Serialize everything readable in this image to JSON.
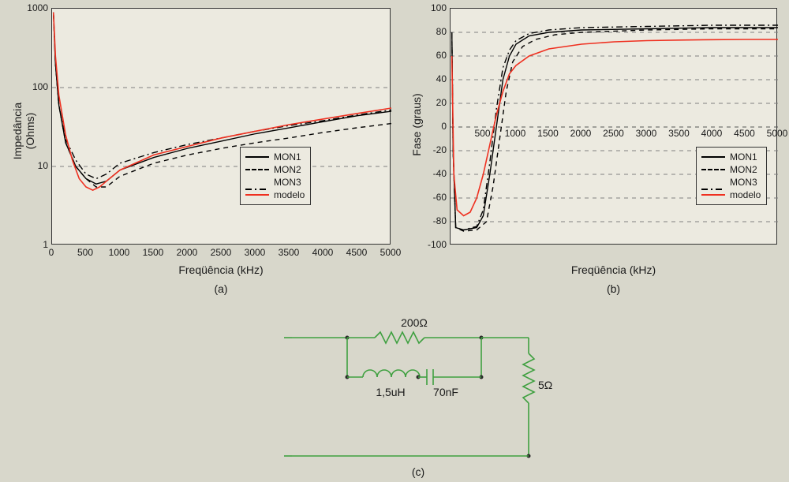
{
  "background_color": "#d8d7cb",
  "plot_bg": "#eceae0",
  "grid_color": "#808080",
  "border_color": "#333333",
  "panel_a": {
    "type": "line",
    "title_fontsize": 14,
    "xlim": [
      0,
      5000
    ],
    "ylim": [
      1,
      1000
    ],
    "yscale": "log",
    "xticks": [
      0,
      500,
      1000,
      1500,
      2000,
      2500,
      3000,
      3500,
      4000,
      4500,
      5000
    ],
    "yticks": [
      1,
      10,
      100,
      1000
    ],
    "xlabel": "Freqüência (kHz)",
    "ylabel": "Impedância (Ohms)",
    "sublabel": "(a)",
    "label_fontsize": 14,
    "tick_fontsize": 12,
    "series": [
      {
        "name": "MON1",
        "color": "#000000",
        "dash": "solid",
        "width": 1.4,
        "data": [
          [
            20,
            900
          ],
          [
            50,
            200
          ],
          [
            100,
            60
          ],
          [
            200,
            20
          ],
          [
            350,
            10
          ],
          [
            500,
            7
          ],
          [
            650,
            6
          ],
          [
            800,
            6.5
          ],
          [
            1000,
            9
          ],
          [
            1500,
            13
          ],
          [
            2000,
            17
          ],
          [
            2500,
            21
          ],
          [
            3000,
            26
          ],
          [
            3500,
            31
          ],
          [
            4000,
            37
          ],
          [
            4500,
            44
          ],
          [
            5000,
            50
          ]
        ]
      },
      {
        "name": "MON2",
        "color": "#000000",
        "dash": "dashed",
        "width": 1.4,
        "data": [
          [
            20,
            900
          ],
          [
            50,
            200
          ],
          [
            100,
            60
          ],
          [
            200,
            20
          ],
          [
            350,
            10
          ],
          [
            500,
            7
          ],
          [
            650,
            5.5
          ],
          [
            800,
            5.5
          ],
          [
            1000,
            7.5
          ],
          [
            1500,
            11
          ],
          [
            2000,
            14
          ],
          [
            2500,
            17
          ],
          [
            3000,
            20
          ],
          [
            3500,
            23
          ],
          [
            4000,
            27
          ],
          [
            4500,
            31
          ],
          [
            5000,
            35
          ]
        ]
      },
      {
        "name": "MON3",
        "color": "#000000",
        "dash": "dashdot",
        "width": 1.4,
        "data": [
          [
            20,
            900
          ],
          [
            50,
            200
          ],
          [
            100,
            60
          ],
          [
            200,
            22
          ],
          [
            350,
            12
          ],
          [
            500,
            8
          ],
          [
            650,
            7
          ],
          [
            800,
            8
          ],
          [
            1000,
            11
          ],
          [
            1500,
            15
          ],
          [
            2000,
            19
          ],
          [
            2500,
            23
          ],
          [
            3000,
            28
          ],
          [
            3500,
            33
          ],
          [
            4000,
            38
          ],
          [
            4500,
            45
          ],
          [
            5000,
            52
          ]
        ]
      },
      {
        "name": "modelo",
        "color": "#ef3020",
        "dash": "solid",
        "width": 1.6,
        "data": [
          [
            20,
            900
          ],
          [
            50,
            250
          ],
          [
            100,
            80
          ],
          [
            200,
            25
          ],
          [
            300,
            12
          ],
          [
            400,
            7
          ],
          [
            500,
            5.5
          ],
          [
            600,
            5
          ],
          [
            700,
            5.5
          ],
          [
            800,
            6.5
          ],
          [
            1000,
            9
          ],
          [
            1500,
            14
          ],
          [
            2000,
            18
          ],
          [
            2500,
            23
          ],
          [
            3000,
            28
          ],
          [
            3500,
            34
          ],
          [
            4000,
            40
          ],
          [
            4500,
            47
          ],
          [
            5000,
            55
          ]
        ]
      }
    ],
    "legend": {
      "items": [
        "MON1",
        "MON2",
        "MON3",
        "modelo"
      ],
      "dashes": [
        "solid",
        "dashed",
        "dashdot",
        "solid"
      ],
      "colors": [
        "#000000",
        "#000000",
        "#000000",
        "#ef3020"
      ]
    }
  },
  "panel_b": {
    "type": "line",
    "xlim": [
      0,
      5000
    ],
    "ylim": [
      -100,
      100
    ],
    "yscale": "linear",
    "xticks": [
      500,
      1000,
      1500,
      2000,
      2500,
      3000,
      3500,
      4000,
      4500,
      5000
    ],
    "yticks": [
      -100,
      -80,
      -60,
      -40,
      -20,
      0,
      20,
      40,
      60,
      80,
      100
    ],
    "xlabel": "Freqüência (kHz)",
    "ylabel": "Fase (graus)",
    "sublabel": "(b)",
    "label_fontsize": 14,
    "tick_fontsize": 12,
    "series": [
      {
        "name": "MON1",
        "color": "#000000",
        "dash": "solid",
        "width": 1.4,
        "data": [
          [
            20,
            80
          ],
          [
            40,
            -20
          ],
          [
            80,
            -85
          ],
          [
            200,
            -87
          ],
          [
            400,
            -85
          ],
          [
            500,
            -75
          ],
          [
            600,
            -40
          ],
          [
            700,
            0
          ],
          [
            800,
            40
          ],
          [
            900,
            60
          ],
          [
            1000,
            70
          ],
          [
            1200,
            77
          ],
          [
            1500,
            80
          ],
          [
            2000,
            82
          ],
          [
            3000,
            83
          ],
          [
            4000,
            84
          ],
          [
            5000,
            84
          ]
        ]
      },
      {
        "name": "MON2",
        "color": "#000000",
        "dash": "dashed",
        "width": 1.4,
        "data": [
          [
            20,
            80
          ],
          [
            40,
            -20
          ],
          [
            80,
            -85
          ],
          [
            200,
            -88
          ],
          [
            400,
            -87
          ],
          [
            550,
            -80
          ],
          [
            650,
            -50
          ],
          [
            750,
            -10
          ],
          [
            850,
            30
          ],
          [
            950,
            55
          ],
          [
            1100,
            68
          ],
          [
            1300,
            74
          ],
          [
            1600,
            78
          ],
          [
            2000,
            80
          ],
          [
            3000,
            82
          ],
          [
            4000,
            83
          ],
          [
            5000,
            83
          ]
        ]
      },
      {
        "name": "MON3",
        "color": "#000000",
        "dash": "dashdot",
        "width": 1.4,
        "data": [
          [
            20,
            80
          ],
          [
            40,
            -20
          ],
          [
            80,
            -85
          ],
          [
            200,
            -87
          ],
          [
            400,
            -84
          ],
          [
            500,
            -70
          ],
          [
            600,
            -30
          ],
          [
            700,
            15
          ],
          [
            800,
            50
          ],
          [
            900,
            65
          ],
          [
            1000,
            73
          ],
          [
            1200,
            79
          ],
          [
            1500,
            82
          ],
          [
            2000,
            84
          ],
          [
            3000,
            85
          ],
          [
            4000,
            86
          ],
          [
            5000,
            86
          ]
        ]
      },
      {
        "name": "modelo",
        "color": "#ef3020",
        "dash": "solid",
        "width": 1.6,
        "data": [
          [
            20,
            60
          ],
          [
            50,
            -40
          ],
          [
            100,
            -70
          ],
          [
            200,
            -75
          ],
          [
            300,
            -72
          ],
          [
            400,
            -60
          ],
          [
            500,
            -40
          ],
          [
            600,
            -15
          ],
          [
            700,
            10
          ],
          [
            800,
            30
          ],
          [
            900,
            45
          ],
          [
            1000,
            52
          ],
          [
            1200,
            60
          ],
          [
            1500,
            66
          ],
          [
            2000,
            70
          ],
          [
            2500,
            72
          ],
          [
            3000,
            73
          ],
          [
            3500,
            73.5
          ],
          [
            4000,
            73.8
          ],
          [
            4500,
            74
          ],
          [
            5000,
            74
          ]
        ]
      }
    ],
    "legend": {
      "items": [
        "MON1",
        "MON2",
        "MON3",
        "modelo"
      ],
      "dashes": [
        "solid",
        "dashed",
        "dashdot",
        "solid"
      ],
      "colors": [
        "#000000",
        "#000000",
        "#000000",
        "#ef3020"
      ]
    }
  },
  "panel_c": {
    "type": "circuit",
    "sublabel": "(c)",
    "wire_color": "#3fa040",
    "node_color": "#2a2a2a",
    "text_color": "#1a1a1a",
    "r1": {
      "label": "200Ω",
      "value": 200,
      "unit": "Ω"
    },
    "l": {
      "label": "1,5uH",
      "value": 1.5,
      "unit": "uH"
    },
    "c": {
      "label": "70nF",
      "value": 70,
      "unit": "nF"
    },
    "r2": {
      "label": "5Ω",
      "value": 5,
      "unit": "Ω"
    }
  }
}
